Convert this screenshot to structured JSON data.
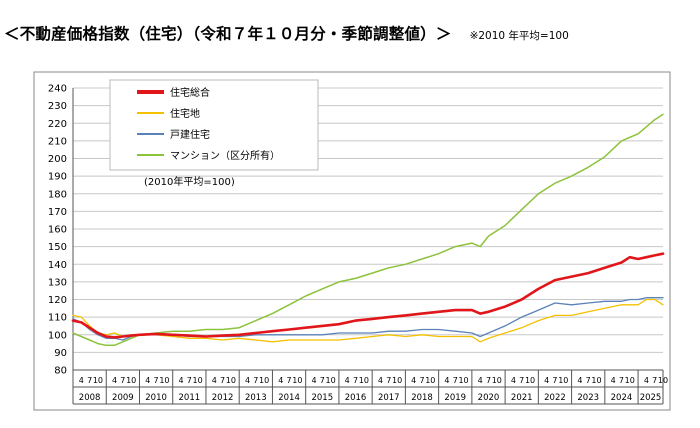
{
  "heading": {
    "title": "＜不動産価格指数（住宅）（令和７年１０月分・季節調整値）＞",
    "note": "※2010 年平均=100"
  },
  "colors": {
    "residential_total": "#e0161b",
    "residential_land": "#f5c000",
    "detached_house": "#5b82b8",
    "condominium": "#8cc23c",
    "grid": "#c8c8c8",
    "frame": "#888888"
  },
  "chart_data": {
    "type": "line",
    "title": "",
    "xlabel": "",
    "ylabel": "",
    "ylim": [
      80,
      240
    ],
    "yticks": [
      80,
      90,
      100,
      110,
      120,
      130,
      140,
      150,
      160,
      170,
      180,
      190,
      200,
      210,
      220,
      230,
      240
    ],
    "grid": true,
    "legend_position": "top-left",
    "base_note": "(2010年平均=100)",
    "x_month_ticks": [
      "4",
      "7",
      "10"
    ],
    "years": [
      "2008",
      "2009",
      "2010",
      "2011",
      "2012",
      "2013",
      "2014",
      "2015",
      "2016",
      "2017",
      "2018",
      "2019",
      "2020",
      "2021",
      "2022",
      "2023",
      "2024",
      "2025"
    ],
    "x_start": "2008-01",
    "x_end": "2025-10",
    "series": [
      {
        "name": "住宅総合",
        "color_key": "residential_total",
        "points": [
          [
            "2008-01",
            108
          ],
          [
            "2008-04",
            107
          ],
          [
            "2008-07",
            104
          ],
          [
            "2008-10",
            101
          ],
          [
            "2009-01",
            99
          ],
          [
            "2009-04",
            98.5
          ],
          [
            "2009-07",
            99
          ],
          [
            "2009-10",
            99.5
          ],
          [
            "2010-01",
            100
          ],
          [
            "2010-07",
            100.5
          ],
          [
            "2011-01",
            100
          ],
          [
            "2011-07",
            99.5
          ],
          [
            "2012-01",
            99
          ],
          [
            "2012-07",
            99.5
          ],
          [
            "2013-01",
            100
          ],
          [
            "2013-07",
            101
          ],
          [
            "2014-01",
            102
          ],
          [
            "2014-07",
            103
          ],
          [
            "2015-01",
            104
          ],
          [
            "2015-07",
            105
          ],
          [
            "2016-01",
            106
          ],
          [
            "2016-07",
            108
          ],
          [
            "2017-01",
            109
          ],
          [
            "2017-07",
            110
          ],
          [
            "2018-01",
            111
          ],
          [
            "2018-07",
            112
          ],
          [
            "2019-01",
            113
          ],
          [
            "2019-07",
            114
          ],
          [
            "2020-01",
            114
          ],
          [
            "2020-04",
            112
          ],
          [
            "2020-07",
            113
          ],
          [
            "2021-01",
            116
          ],
          [
            "2021-07",
            120
          ],
          [
            "2022-01",
            126
          ],
          [
            "2022-07",
            131
          ],
          [
            "2023-01",
            133
          ],
          [
            "2023-07",
            135
          ],
          [
            "2024-01",
            138
          ],
          [
            "2024-07",
            141
          ],
          [
            "2024-10",
            144
          ],
          [
            "2025-01",
            143
          ],
          [
            "2025-04",
            144
          ],
          [
            "2025-07",
            145
          ],
          [
            "2025-10",
            146
          ]
        ]
      },
      {
        "name": "住宅地",
        "color_key": "residential_land",
        "points": [
          [
            "2008-01",
            111
          ],
          [
            "2008-04",
            110
          ],
          [
            "2008-07",
            105
          ],
          [
            "2008-10",
            101
          ],
          [
            "2009-01",
            100
          ],
          [
            "2009-04",
            101
          ],
          [
            "2009-07",
            99
          ],
          [
            "2009-10",
            100
          ],
          [
            "2010-01",
            100
          ],
          [
            "2010-07",
            100
          ],
          [
            "2011-01",
            99
          ],
          [
            "2011-07",
            98
          ],
          [
            "2012-01",
            98
          ],
          [
            "2012-07",
            97
          ],
          [
            "2013-01",
            98
          ],
          [
            "2013-07",
            97
          ],
          [
            "2014-01",
            96
          ],
          [
            "2014-07",
            97
          ],
          [
            "2015-01",
            97
          ],
          [
            "2015-07",
            97
          ],
          [
            "2016-01",
            97
          ],
          [
            "2016-07",
            98
          ],
          [
            "2017-01",
            99
          ],
          [
            "2017-07",
            100
          ],
          [
            "2018-01",
            99
          ],
          [
            "2018-07",
            100
          ],
          [
            "2019-01",
            99
          ],
          [
            "2019-07",
            99
          ],
          [
            "2020-01",
            99
          ],
          [
            "2020-04",
            96
          ],
          [
            "2020-07",
            98
          ],
          [
            "2021-01",
            101
          ],
          [
            "2021-07",
            104
          ],
          [
            "2022-01",
            108
          ],
          [
            "2022-07",
            111
          ],
          [
            "2023-01",
            111
          ],
          [
            "2023-07",
            113
          ],
          [
            "2024-01",
            115
          ],
          [
            "2024-07",
            117
          ],
          [
            "2025-01",
            117
          ],
          [
            "2025-04",
            120
          ],
          [
            "2025-07",
            120
          ],
          [
            "2025-10",
            117
          ]
        ]
      },
      {
        "name": "戸建住宅",
        "color_key": "detached_house",
        "points": [
          [
            "2008-01",
            109
          ],
          [
            "2008-04",
            107
          ],
          [
            "2008-07",
            103
          ],
          [
            "2008-10",
            100
          ],
          [
            "2009-01",
            98
          ],
          [
            "2009-04",
            98
          ],
          [
            "2009-07",
            97
          ],
          [
            "2009-10",
            99
          ],
          [
            "2010-01",
            100
          ],
          [
            "2010-07",
            100
          ],
          [
            "2011-01",
            100
          ],
          [
            "2011-07",
            99
          ],
          [
            "2012-01",
            99
          ],
          [
            "2012-07",
            99
          ],
          [
            "2013-01",
            99
          ],
          [
            "2013-07",
            100
          ],
          [
            "2014-01",
            100
          ],
          [
            "2014-07",
            100
          ],
          [
            "2015-01",
            100
          ],
          [
            "2015-07",
            100
          ],
          [
            "2016-01",
            101
          ],
          [
            "2016-07",
            101
          ],
          [
            "2017-01",
            101
          ],
          [
            "2017-07",
            102
          ],
          [
            "2018-01",
            102
          ],
          [
            "2018-07",
            103
          ],
          [
            "2019-01",
            103
          ],
          [
            "2019-07",
            102
          ],
          [
            "2020-01",
            101
          ],
          [
            "2020-04",
            99
          ],
          [
            "2020-07",
            101
          ],
          [
            "2021-01",
            105
          ],
          [
            "2021-07",
            110
          ],
          [
            "2022-01",
            114
          ],
          [
            "2022-07",
            118
          ],
          [
            "2023-01",
            117
          ],
          [
            "2023-07",
            118
          ],
          [
            "2024-01",
            119
          ],
          [
            "2024-07",
            119
          ],
          [
            "2024-10",
            120
          ],
          [
            "2025-01",
            120
          ],
          [
            "2025-04",
            121
          ],
          [
            "2025-07",
            121
          ],
          [
            "2025-10",
            121
          ]
        ]
      },
      {
        "name": "マンション（区分所有）",
        "color_key": "condominium",
        "points": [
          [
            "2008-01",
            101
          ],
          [
            "2008-04",
            99
          ],
          [
            "2008-07",
            97
          ],
          [
            "2008-10",
            95
          ],
          [
            "2009-01",
            94
          ],
          [
            "2009-04",
            94
          ],
          [
            "2009-07",
            96
          ],
          [
            "2009-10",
            98
          ],
          [
            "2010-01",
            100
          ],
          [
            "2010-07",
            101
          ],
          [
            "2011-01",
            102
          ],
          [
            "2011-07",
            102
          ],
          [
            "2012-01",
            103
          ],
          [
            "2012-07",
            103
          ],
          [
            "2013-01",
            104
          ],
          [
            "2013-07",
            108
          ],
          [
            "2014-01",
            112
          ],
          [
            "2014-07",
            117
          ],
          [
            "2015-01",
            122
          ],
          [
            "2015-07",
            126
          ],
          [
            "2016-01",
            130
          ],
          [
            "2016-07",
            132
          ],
          [
            "2017-01",
            135
          ],
          [
            "2017-07",
            138
          ],
          [
            "2018-01",
            140
          ],
          [
            "2018-07",
            143
          ],
          [
            "2019-01",
            146
          ],
          [
            "2019-07",
            150
          ],
          [
            "2020-01",
            152
          ],
          [
            "2020-04",
            150
          ],
          [
            "2020-07",
            156
          ],
          [
            "2021-01",
            162
          ],
          [
            "2021-07",
            171
          ],
          [
            "2022-01",
            180
          ],
          [
            "2022-07",
            186
          ],
          [
            "2023-01",
            190
          ],
          [
            "2023-07",
            195
          ],
          [
            "2024-01",
            201
          ],
          [
            "2024-07",
            210
          ],
          [
            "2025-01",
            214
          ],
          [
            "2025-04",
            218
          ],
          [
            "2025-07",
            222
          ],
          [
            "2025-10",
            225
          ]
        ]
      }
    ]
  }
}
